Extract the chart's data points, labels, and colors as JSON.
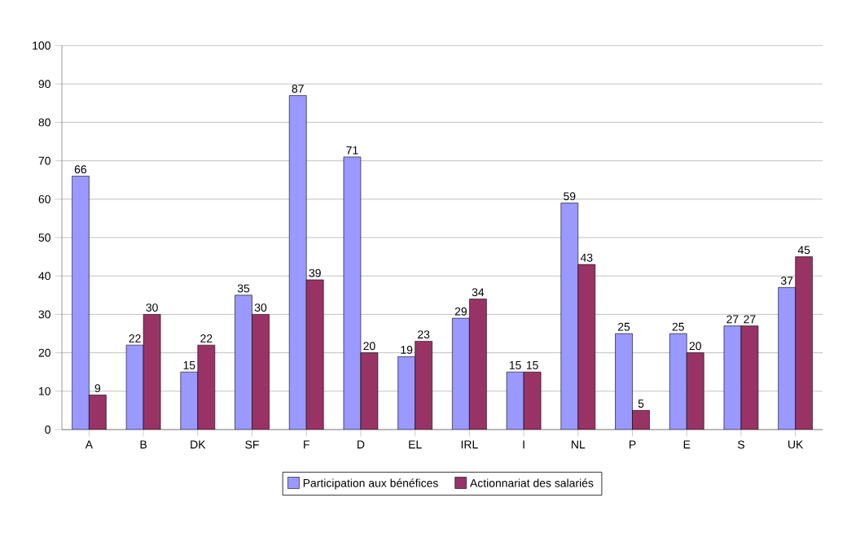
{
  "chart_data": {
    "type": "bar",
    "categories": [
      "A",
      "B",
      "DK",
      "SF",
      "F",
      "D",
      "EL",
      "IRL",
      "I",
      "NL",
      "P",
      "E",
      "S",
      "UK"
    ],
    "series": [
      {
        "name": "Participation aux bénéfices",
        "color": "#9999ff",
        "values": [
          66,
          22,
          15,
          35,
          87,
          71,
          19,
          29,
          15,
          59,
          25,
          25,
          27,
          37
        ]
      },
      {
        "name": "Actionnariat des salariés",
        "color": "#993366",
        "values": [
          9,
          30,
          22,
          30,
          39,
          20,
          23,
          34,
          15,
          43,
          5,
          20,
          27,
          45
        ]
      }
    ],
    "ylim": [
      0,
      100
    ],
    "yticks": [
      0,
      10,
      20,
      30,
      40,
      50,
      60,
      70,
      80,
      90,
      100
    ],
    "grid": "y",
    "legend": "bottom",
    "data_labels": true
  }
}
